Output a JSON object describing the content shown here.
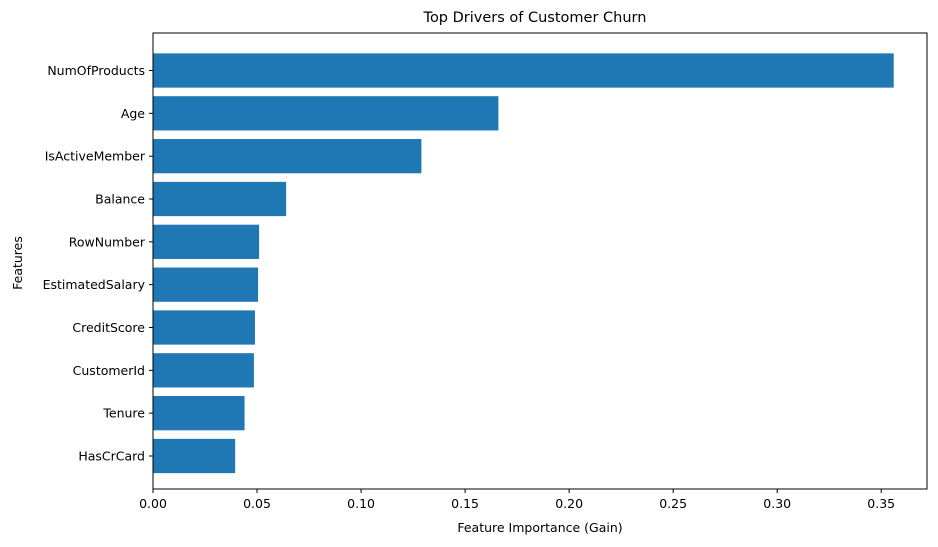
{
  "chart_data": {
    "type": "bar",
    "orientation": "horizontal",
    "title": "Top Drivers of Customer Churn",
    "xlabel": "Feature Importance (Gain)",
    "ylabel": "Features",
    "categories": [
      "NumOfProducts",
      "Age",
      "IsActiveMember",
      "Balance",
      "RowNumber",
      "EstimatedSalary",
      "CreditScore",
      "CustomerId",
      "Tenure",
      "HasCrCard"
    ],
    "values": [
      0.356,
      0.166,
      0.129,
      0.064,
      0.051,
      0.0505,
      0.049,
      0.0485,
      0.044,
      0.0395
    ],
    "xlim": [
      0,
      0.372
    ],
    "xticks": [
      0.0,
      0.05,
      0.1,
      0.15,
      0.2,
      0.25,
      0.3,
      0.35
    ],
    "xtick_labels": [
      "0.00",
      "0.05",
      "0.10",
      "0.15",
      "0.20",
      "0.25",
      "0.30",
      "0.35"
    ],
    "bar_color": "#1f77b4",
    "grid": false,
    "legend": "none"
  }
}
